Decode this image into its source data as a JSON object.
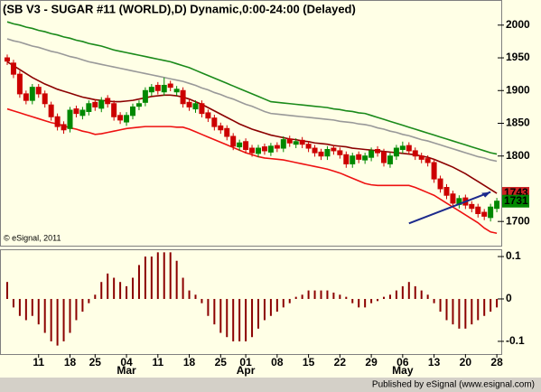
{
  "chart_data": [
    {
      "type": "candlestick",
      "title": "(SB V3 - SUGAR #11 (WORLD),D) Dynamic,0:00-24:00 (Delayed)",
      "watermark": "© eSignal, 2011",
      "ylim": [
        1663,
        2037
      ],
      "yticks": [
        1700,
        1800,
        1850,
        1900,
        1950,
        2000
      ],
      "up_color": "#008800",
      "down_color": "#cc0000",
      "open": [
        1950,
        1942,
        1925,
        1895,
        1885,
        1905,
        1895,
        1878,
        1860,
        1848,
        1842,
        1872,
        1862,
        1868,
        1882,
        1873,
        1888,
        1880,
        1862,
        1852,
        1862,
        1876,
        1882,
        1898,
        1908,
        1898,
        1910,
        1898,
        1900,
        1882,
        1872,
        1880,
        1866,
        1858,
        1846,
        1842,
        1830,
        1814,
        1822,
        1812,
        1804,
        1814,
        1806,
        1816,
        1812,
        1826,
        1818,
        1824,
        1818,
        1812,
        1806,
        1800,
        1812,
        1808,
        1802,
        1788,
        1802,
        1794,
        1798,
        1810,
        1806,
        1788,
        1800,
        1810,
        1816,
        1808,
        1800,
        1796,
        1790,
        1765,
        1752,
        1742,
        1726,
        1736,
        1726,
        1722,
        1714,
        1706,
        1720
      ],
      "high": [
        1955,
        1947,
        1930,
        1900,
        1910,
        1910,
        1900,
        1883,
        1865,
        1853,
        1875,
        1877,
        1875,
        1885,
        1887,
        1890,
        1893,
        1885,
        1867,
        1867,
        1880,
        1885,
        1905,
        1910,
        1913,
        1920,
        1915,
        1907,
        1905,
        1887,
        1885,
        1885,
        1871,
        1863,
        1851,
        1847,
        1835,
        1825,
        1827,
        1817,
        1817,
        1819,
        1820,
        1821,
        1830,
        1831,
        1827,
        1829,
        1823,
        1817,
        1811,
        1815,
        1817,
        1813,
        1807,
        1805,
        1807,
        1805,
        1813,
        1815,
        1811,
        1805,
        1817,
        1822,
        1821,
        1813,
        1805,
        1801,
        1795,
        1770,
        1757,
        1747,
        1740,
        1741,
        1731,
        1727,
        1719,
        1727,
        1736
      ],
      "low": [
        1939,
        1919,
        1889,
        1879,
        1879,
        1889,
        1874,
        1854,
        1839,
        1834,
        1836,
        1859,
        1856,
        1862,
        1869,
        1867,
        1874,
        1854,
        1849,
        1846,
        1856,
        1870,
        1876,
        1892,
        1894,
        1892,
        1899,
        1892,
        1874,
        1869,
        1866,
        1859,
        1852,
        1839,
        1834,
        1824,
        1809,
        1808,
        1804,
        1799,
        1798,
        1802,
        1800,
        1806,
        1806,
        1814,
        1812,
        1812,
        1806,
        1799,
        1794,
        1794,
        1802,
        1796,
        1782,
        1782,
        1789,
        1788,
        1792,
        1799,
        1784,
        1782,
        1794,
        1804,
        1802,
        1794,
        1789,
        1784,
        1759,
        1744,
        1734,
        1722,
        1720,
        1719,
        1714,
        1706,
        1702,
        1700,
        1714
      ],
      "close": [
        1945,
        1925,
        1895,
        1885,
        1905,
        1895,
        1880,
        1860,
        1845,
        1840,
        1870,
        1865,
        1870,
        1880,
        1875,
        1885,
        1880,
        1860,
        1855,
        1862,
        1875,
        1880,
        1900,
        1905,
        1900,
        1908,
        1905,
        1902,
        1880,
        1875,
        1880,
        1865,
        1858,
        1845,
        1840,
        1830,
        1815,
        1820,
        1810,
        1805,
        1812,
        1808,
        1815,
        1812,
        1825,
        1820,
        1822,
        1818,
        1812,
        1805,
        1800,
        1810,
        1808,
        1802,
        1788,
        1800,
        1795,
        1800,
        1808,
        1805,
        1790,
        1800,
        1812,
        1815,
        1808,
        1800,
        1795,
        1790,
        1765,
        1750,
        1740,
        1728,
        1735,
        1725,
        1720,
        1712,
        1708,
        1722,
        1731
      ],
      "series": [
        {
          "color": "#1a8a1a",
          "values": [
            2005,
            2002,
            2000,
            1997,
            1995,
            1992,
            1990,
            1987,
            1985,
            1982,
            1980,
            1977,
            1975,
            1972,
            1970,
            1968,
            1965,
            1962,
            1960,
            1958,
            1956,
            1954,
            1952,
            1950,
            1948,
            1946,
            1944,
            1941,
            1938,
            1935,
            1931,
            1927,
            1923,
            1919,
            1915,
            1911,
            1907,
            1903,
            1899,
            1895,
            1891,
            1887,
            1883,
            1882,
            1881,
            1880,
            1879,
            1878,
            1877,
            1876,
            1875,
            1874,
            1872,
            1871,
            1869,
            1868,
            1866,
            1865,
            1862,
            1859,
            1856,
            1853,
            1850,
            1847,
            1844,
            1841,
            1838,
            1835,
            1832,
            1829,
            1826,
            1823,
            1820,
            1817,
            1814,
            1811,
            1808,
            1805,
            1803
          ]
        },
        {
          "color": "#999999",
          "values": [
            1979,
            1976,
            1974,
            1971,
            1968,
            1966,
            1963,
            1960,
            1958,
            1955,
            1952,
            1950,
            1947,
            1944,
            1942,
            1940,
            1938,
            1936,
            1934,
            1932,
            1930,
            1928,
            1926,
            1924,
            1922,
            1920,
            1918,
            1916,
            1914,
            1911,
            1908,
            1904,
            1901,
            1897,
            1894,
            1890,
            1887,
            1883,
            1879,
            1876,
            1872,
            1868,
            1865,
            1864,
            1863,
            1862,
            1861,
            1860,
            1859,
            1858,
            1857,
            1856,
            1855,
            1853,
            1852,
            1851,
            1849,
            1848,
            1846,
            1843,
            1841,
            1838,
            1836,
            1833,
            1831,
            1828,
            1825,
            1823,
            1820,
            1817,
            1814,
            1811,
            1808,
            1805,
            1802,
            1799,
            1797,
            1794,
            1792
          ]
        },
        {
          "color": "#8b0000",
          "values": [
            1944,
            1938,
            1932,
            1926,
            1920,
            1915,
            1910,
            1906,
            1902,
            1899,
            1896,
            1893,
            1890,
            1888,
            1886,
            1885,
            1884,
            1883,
            1883,
            1884,
            1885,
            1887,
            1889,
            1891,
            1892,
            1893,
            1893,
            1892,
            1890,
            1887,
            1883,
            1879,
            1874,
            1869,
            1864,
            1859,
            1854,
            1849,
            1845,
            1841,
            1838,
            1835,
            1832,
            1830,
            1828,
            1826,
            1825,
            1823,
            1822,
            1820,
            1819,
            1818,
            1816,
            1815,
            1814,
            1812,
            1811,
            1810,
            1809,
            1808,
            1807,
            1806,
            1805,
            1804,
            1803,
            1802,
            1800,
            1798,
            1795,
            1791,
            1787,
            1783,
            1778,
            1773,
            1767,
            1761,
            1755,
            1749,
            1743
          ]
        },
        {
          "color": "#ee1111",
          "values": [
            1872,
            1869,
            1866,
            1863,
            1860,
            1857,
            1854,
            1851,
            1849,
            1846,
            1843,
            1841,
            1838,
            1836,
            1833,
            1834,
            1836,
            1838,
            1840,
            1842,
            1843,
            1844,
            1845,
            1845,
            1845,
            1845,
            1845,
            1844,
            1844,
            1841,
            1837,
            1833,
            1829,
            1825,
            1821,
            1817,
            1813,
            1809,
            1805,
            1802,
            1799,
            1797,
            1796,
            1795,
            1794,
            1792,
            1790,
            1788,
            1786,
            1784,
            1782,
            1780,
            1777,
            1774,
            1770,
            1766,
            1762,
            1758,
            1756,
            1755,
            1755,
            1755,
            1755,
            1755,
            1755,
            1752,
            1748,
            1744,
            1740,
            1734,
            1728,
            1722,
            1716,
            1710,
            1704,
            1698,
            1690,
            1684,
            1682
          ]
        }
      ],
      "last_labels": [
        {
          "value": 1743,
          "color": "#cc2222"
        },
        {
          "value": 1731,
          "color": "#008800"
        }
      ],
      "trendline": {
        "start_index": 64,
        "start_value": 1697,
        "end_index": 77,
        "end_value": 1745,
        "color": "#1c2a8c"
      }
    },
    {
      "type": "bar",
      "color": "#8b0000",
      "ylim": [
        -0.13,
        0.115
      ],
      "yticks": [
        0.1,
        0,
        -0.1
      ],
      "categories": [
        null,
        null,
        null,
        null,
        null,
        "11",
        null,
        null,
        null,
        null,
        "18",
        null,
        null,
        null,
        "25",
        null,
        null,
        null,
        null,
        "04",
        null,
        null,
        null,
        null,
        "11",
        null,
        null,
        null,
        null,
        "18",
        null,
        null,
        null,
        null,
        "25",
        null,
        null,
        null,
        "01",
        null,
        null,
        null,
        null,
        "08",
        null,
        null,
        null,
        null,
        "15",
        null,
        null,
        null,
        null,
        "22",
        null,
        null,
        null,
        null,
        "29",
        null,
        null,
        null,
        null,
        "06",
        null,
        null,
        null,
        null,
        "13",
        null,
        null,
        null,
        null,
        "20",
        null,
        null,
        null,
        null,
        "28"
      ],
      "month_labels": [
        null,
        null,
        null,
        null,
        null,
        null,
        null,
        null,
        null,
        null,
        null,
        null,
        null,
        null,
        null,
        null,
        null,
        null,
        null,
        "Mar",
        null,
        null,
        null,
        null,
        null,
        null,
        null,
        null,
        null,
        null,
        null,
        null,
        null,
        null,
        null,
        null,
        null,
        null,
        "Apr",
        null,
        null,
        null,
        null,
        null,
        null,
        null,
        null,
        null,
        null,
        null,
        null,
        null,
        null,
        null,
        null,
        null,
        null,
        null,
        null,
        null,
        null,
        null,
        null,
        "May",
        null,
        null,
        null,
        null,
        null,
        null,
        null,
        null,
        null,
        null,
        null,
        null,
        null,
        null,
        null
      ],
      "values": [
        0.04,
        -0.02,
        -0.04,
        -0.05,
        -0.04,
        -0.06,
        -0.08,
        -0.1,
        -0.11,
        -0.1,
        -0.08,
        -0.05,
        -0.03,
        -0.01,
        0.01,
        0.04,
        0.06,
        0.05,
        0.04,
        0.03,
        0.05,
        0.08,
        0.1,
        0.1,
        0.11,
        0.11,
        0.11,
        0.09,
        0.05,
        0.02,
        0.01,
        -0.01,
        -0.04,
        -0.06,
        -0.08,
        -0.09,
        -0.1,
        -0.1,
        -0.1,
        -0.09,
        -0.07,
        -0.05,
        -0.04,
        -0.03,
        -0.02,
        -0.01,
        0.005,
        0.01,
        0.02,
        0.02,
        0.02,
        0.02,
        0.015,
        0.01,
        0.005,
        -0.01,
        -0.02,
        -0.02,
        -0.01,
        -0.005,
        0.005,
        0.01,
        0.02,
        0.03,
        0.04,
        0.03,
        0.02,
        0.01,
        -0.01,
        -0.03,
        -0.05,
        -0.06,
        -0.07,
        -0.07,
        -0.06,
        -0.05,
        -0.04,
        -0.03,
        -0.02
      ]
    }
  ],
  "footer": "Published by eSignal (www.esignal.com)"
}
